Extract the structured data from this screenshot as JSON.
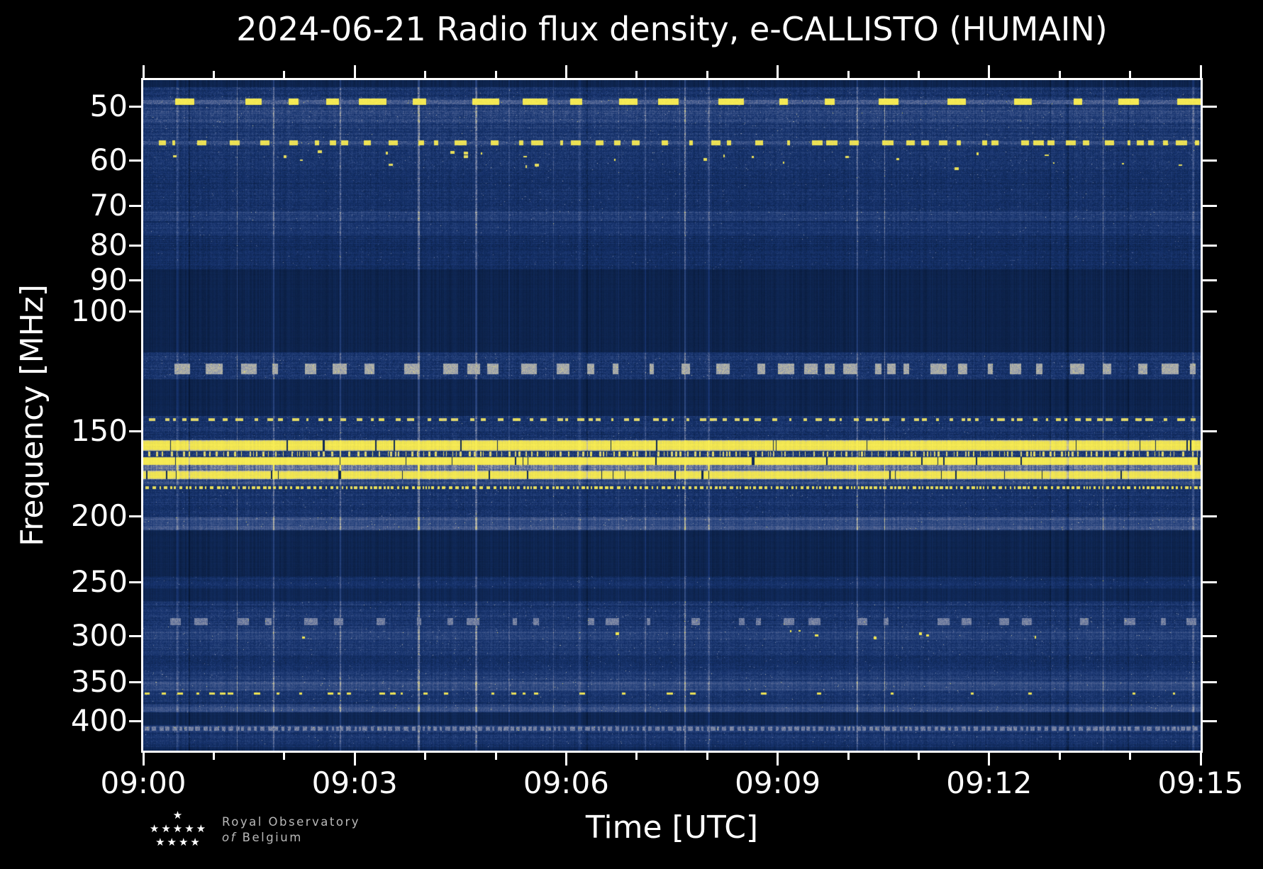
{
  "page": {
    "background": "#000000"
  },
  "chart_data": {
    "type": "heatmap",
    "title": "2024-06-21 Radio flux density, e-CALLISTO (HUMAIN)",
    "xlabel": "Time [UTC]",
    "ylabel": "Frequency [MHz]",
    "x_ticks": [
      "09:00",
      "09:03",
      "09:06",
      "09:09",
      "09:12",
      "09:15"
    ],
    "x_major_tick_every_min": 3,
    "x_minor_tick_every_min": 1,
    "x_range": [
      "09:00",
      "09:15"
    ],
    "y_scale": "log",
    "y_axis_inverted": true,
    "y_ticks": [
      50,
      60,
      70,
      80,
      90,
      100,
      150,
      200,
      250,
      300,
      350,
      400
    ],
    "y_range_mhz": [
      45.8,
      441.9
    ],
    "grid": false,
    "plot_bg": "#0d2450",
    "colormap": {
      "stops": [
        [
          0.0,
          "#061735"
        ],
        [
          0.1,
          "#0c2148"
        ],
        [
          0.2,
          "#102a5c"
        ],
        [
          0.32,
          "#17336e"
        ],
        [
          0.45,
          "#2f4a82"
        ],
        [
          0.58,
          "#5a6a97"
        ],
        [
          0.7,
          "#9aa0ae"
        ],
        [
          0.8,
          "#c9c49c"
        ],
        [
          0.88,
          "#eadf4f"
        ],
        [
          1.0,
          "#f7ec55"
        ]
      ]
    },
    "accent_yellow": "#f2e23a",
    "bands": [
      {
        "f0": 45.8,
        "f1": 46.9,
        "style": "smooth",
        "base": 0.13
      },
      {
        "f0": 46.9,
        "f1": 48.4,
        "style": "speckle",
        "base": 0.3,
        "noise": 0.22
      },
      {
        "f0": 48.4,
        "f1": 50.3,
        "style": "dash",
        "base": 0.34,
        "noise": 0.2,
        "line": 0.52,
        "dash": {
          "i": 0.97,
          "core": 0.6,
          "on": [
            10,
            45
          ],
          "gap": [
            15,
            75
          ]
        }
      },
      {
        "f0": 50.3,
        "f1": 52.7,
        "style": "speckle",
        "base": 0.4,
        "noise": 0.2
      },
      {
        "f0": 52.7,
        "f1": 55.7,
        "style": "speckle",
        "base": 0.34,
        "noise": 0.2
      },
      {
        "f0": 55.7,
        "f1": 57.5,
        "style": "dash",
        "base": 0.31,
        "noise": 0.18,
        "line": 0.46,
        "dash": {
          "i": 0.9,
          "core": 0.5,
          "on": [
            4,
            18
          ],
          "gap": [
            5,
            35
          ]
        }
      },
      {
        "f0": 57.5,
        "f1": 62.1,
        "style": "dots",
        "base": 0.3,
        "noise": 0.2,
        "dots": {
          "n": 26,
          "i": 0.95
        }
      },
      {
        "f0": 62.1,
        "f1": 71.3,
        "style": "speckle",
        "base": 0.27,
        "noise": 0.18
      },
      {
        "f0": 71.3,
        "f1": 73.8,
        "style": "speckle",
        "base": 0.36,
        "noise": 0.16
      },
      {
        "f0": 73.8,
        "f1": 74.8,
        "style": "speckle",
        "base": 0.28,
        "noise": 0.16
      },
      {
        "f0": 74.8,
        "f1": 77.4,
        "style": "speckle",
        "base": 0.33,
        "noise": 0.16
      },
      {
        "f0": 77.4,
        "f1": 86.8,
        "style": "speckle",
        "base": 0.23,
        "noise": 0.15
      },
      {
        "f0": 86.8,
        "f1": 114.9,
        "style": "smooth",
        "base": 0.12
      },
      {
        "f0": 114.9,
        "f1": 117.4,
        "style": "speckle",
        "base": 0.3,
        "noise": 0.18
      },
      {
        "f0": 117.4,
        "f1": 125.9,
        "style": "dash",
        "base": 0.31,
        "noise": 0.2,
        "dash": {
          "i": 0.72,
          "core": 0.55,
          "on": [
            6,
            25
          ],
          "gap": [
            8,
            45
          ]
        }
      },
      {
        "f0": 125.9,
        "f1": 142.6,
        "style": "smooth",
        "base": 0.13
      },
      {
        "f0": 142.6,
        "f1": 146.1,
        "style": "dash",
        "base": 0.29,
        "noise": 0.18,
        "dash": {
          "i": 0.85,
          "core": 0.45,
          "on": [
            3,
            12
          ],
          "gap": [
            3,
            20
          ]
        }
      },
      {
        "f0": 146.1,
        "f1": 154.7,
        "style": "speckle",
        "base": 0.3,
        "noise": 0.2
      },
      {
        "f0": 154.7,
        "f1": 160.3,
        "style": "line",
        "base": 0.93,
        "noise": 0.06,
        "cuts": 0.012
      },
      {
        "f0": 160.3,
        "f1": 163.8,
        "style": "dash",
        "base": 0.35,
        "noise": 0.2,
        "dash": {
          "i": 0.85,
          "core": 0.85,
          "on": [
            1,
            4
          ],
          "gap": [
            2,
            12
          ]
        }
      },
      {
        "f0": 163.8,
        "f1": 168.2,
        "style": "line",
        "base": 0.99,
        "noise": 0.04,
        "cuts": 0.015
      },
      {
        "f0": 168.2,
        "f1": 171.4,
        "style": "speckle",
        "base": 0.55,
        "noise": 0.14,
        "vs": 1.6
      },
      {
        "f0": 171.4,
        "f1": 176.4,
        "style": "line",
        "base": 0.92,
        "noise": 0.07,
        "cuts": 0.015
      },
      {
        "f0": 176.4,
        "f1": 179.8,
        "style": "speckle",
        "base": 0.45,
        "noise": 0.16
      },
      {
        "f0": 179.8,
        "f1": 183.3,
        "style": "dotline",
        "base": 0.3,
        "noise": 0.16,
        "dash": {
          "i": 0.88,
          "core": 0.7,
          "on": [
            2,
            6
          ],
          "gap": [
            2,
            6
          ]
        }
      },
      {
        "f0": 183.3,
        "f1": 200.8,
        "style": "speckle",
        "base": 0.3,
        "noise": 0.18
      },
      {
        "f0": 200.8,
        "f1": 209.7,
        "style": "speckle",
        "base": 0.48,
        "noise": 0.12
      },
      {
        "f0": 209.7,
        "f1": 245.1,
        "style": "smooth",
        "base": 0.13
      },
      {
        "f0": 245.1,
        "f1": 255.3,
        "style": "speckle",
        "base": 0.24,
        "noise": 0.14
      },
      {
        "f0": 255.3,
        "f1": 266.4,
        "style": "smooth",
        "base": 0.16
      },
      {
        "f0": 266.4,
        "f1": 278.2,
        "style": "speckle",
        "base": 0.3,
        "noise": 0.17
      },
      {
        "f0": 278.2,
        "f1": 293.2,
        "style": "dash",
        "base": 0.32,
        "noise": 0.18,
        "dash": {
          "i": 0.62,
          "core": 0.5,
          "on": [
            5,
            20
          ],
          "gap": [
            15,
            70
          ]
        }
      },
      {
        "f0": 293.2,
        "f1": 304.0,
        "style": "dots",
        "base": 0.42,
        "noise": 0.14,
        "dots": {
          "n": 9,
          "i": 1.0
        }
      },
      {
        "f0": 304.0,
        "f1": 320.4,
        "style": "speckle",
        "base": 0.31,
        "noise": 0.16
      },
      {
        "f0": 320.4,
        "f1": 337.0,
        "style": "speckle",
        "base": 0.26,
        "noise": 0.16
      },
      {
        "f0": 337.0,
        "f1": 350.1,
        "style": "speckle",
        "base": 0.36,
        "noise": 0.15
      },
      {
        "f0": 350.1,
        "f1": 361.2,
        "style": "speckle",
        "base": 0.46,
        "noise": 0.12
      },
      {
        "f0": 361.2,
        "f1": 367.4,
        "style": "dash",
        "base": 0.3,
        "noise": 0.16,
        "leftbias": true,
        "dash": {
          "i": 0.9,
          "core": 0.6,
          "on": [
            3,
            10
          ],
          "gap": [
            8,
            70
          ]
        }
      },
      {
        "f0": 367.4,
        "f1": 378.1,
        "style": "speckle",
        "base": 0.29,
        "noise": 0.16
      },
      {
        "f0": 378.1,
        "f1": 388.2,
        "style": "speckle",
        "base": 0.42,
        "noise": 0.12
      },
      {
        "f0": 388.2,
        "f1": 405.3,
        "style": "smooth",
        "base": 0.15
      },
      {
        "f0": 405.3,
        "f1": 416.0,
        "style": "dotline",
        "base": 0.35,
        "noise": 0.14,
        "dash": {
          "i": 0.62,
          "core": 0.6,
          "on": [
            3,
            8
          ],
          "gap": [
            2,
            6
          ]
        }
      },
      {
        "f0": 416.0,
        "f1": 436.5,
        "style": "speckle",
        "base": 0.29,
        "noise": 0.16
      },
      {
        "f0": 436.5,
        "f1": 441.9,
        "style": "smooth",
        "base": 0.17
      }
    ]
  },
  "logo": {
    "stars_rows": [
      "★",
      "★★★★★",
      "★★★★"
    ],
    "line1": "Royal Observatory",
    "line2_italic": "of",
    "line2_rest": "Belgium"
  },
  "colors": {
    "axis": "#ffffff",
    "title_text": "#ffffff",
    "tick_text": "#ffffff",
    "logo_text": "#b9b9b9"
  }
}
